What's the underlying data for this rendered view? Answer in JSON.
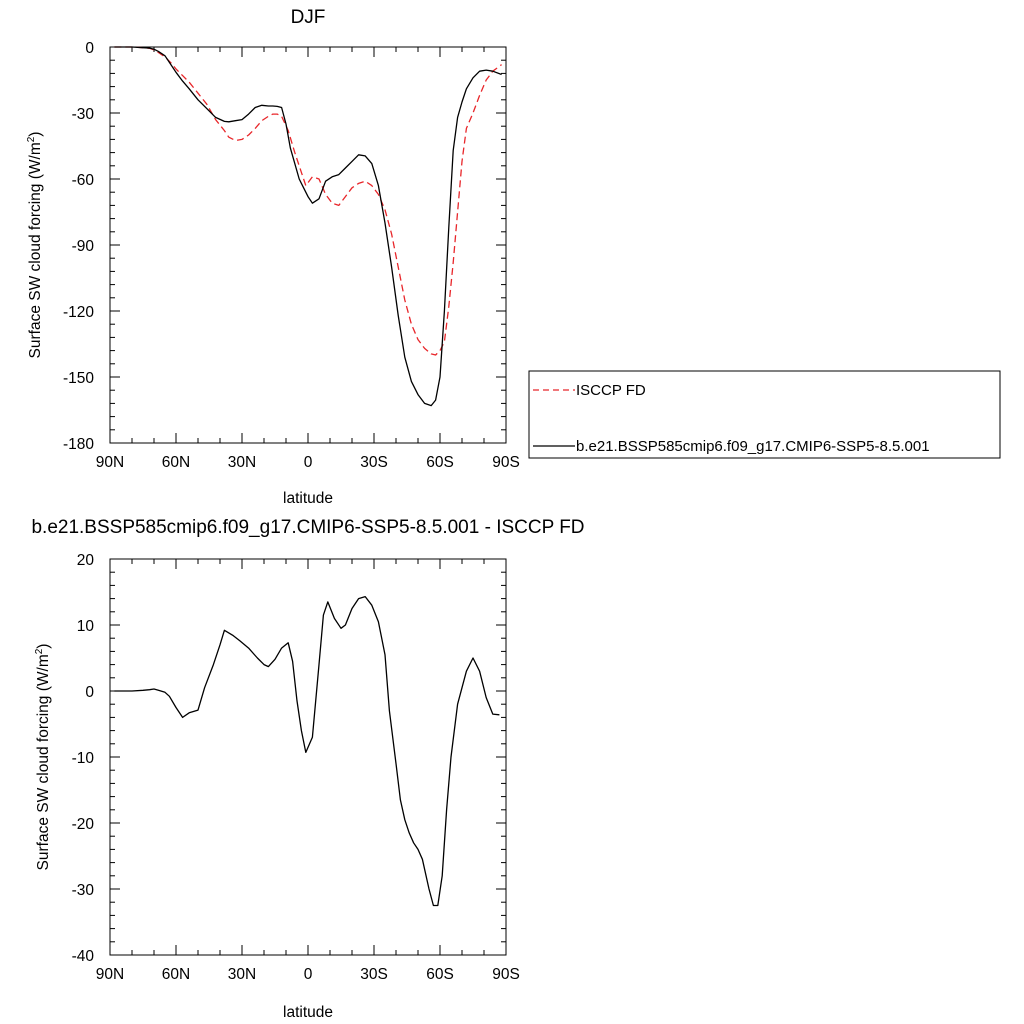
{
  "chart_data": [
    {
      "type": "line",
      "title": "DJF",
      "xlabel": "latitude",
      "ylabel": "Surface SW cloud forcing (W/m",
      "ylabel_sup": "2",
      "ylabel_close": ")",
      "xlim": [
        90,
        -90
      ],
      "ylim": [
        -180,
        0
      ],
      "x_ticks": [
        90,
        60,
        30,
        0,
        -30,
        -60,
        -90
      ],
      "x_tick_labels": [
        "90N",
        "60N",
        "30N",
        "0",
        "30S",
        "60S",
        "90S"
      ],
      "y_ticks": [
        0,
        -30,
        -60,
        -90,
        -120,
        -150,
        -180
      ],
      "y_tick_labels": [
        "0",
        "-30",
        "-60",
        "-90",
        "-120",
        "-150",
        "-180"
      ],
      "legend": {
        "placement": "right",
        "entries": [
          {
            "label": "ISCCP FD",
            "color": "#e8262a",
            "dash": "dashed"
          },
          {
            "label": "b.e21.BSSP585cmip6.f09_g17.CMIP6-SSP5-8.5.001",
            "color": "#000000",
            "dash": "solid"
          }
        ]
      },
      "series": [
        {
          "name": "ISCCP FD",
          "color": "#e8262a",
          "dash": "dashed",
          "x": [
            88,
            85,
            80,
            75,
            72,
            70,
            68,
            65,
            62,
            60,
            57,
            54,
            50,
            46,
            42,
            38,
            36,
            33,
            30,
            27,
            24,
            21,
            18,
            16,
            14,
            12,
            9,
            6,
            3,
            1,
            -2,
            -5,
            -8,
            -11,
            -14,
            -17,
            -20,
            -23,
            -26,
            -29,
            -32,
            -35,
            -38,
            -41,
            -44,
            -47,
            -50,
            -53,
            -56,
            -58,
            -60,
            -62,
            -64,
            -66,
            -68,
            -70,
            -72,
            -75,
            -78,
            -81,
            -84,
            -88
          ],
          "y": [
            0,
            0,
            0,
            -0.3,
            -0.6,
            -1.3,
            -2.5,
            -4.5,
            -7.5,
            -10,
            -13,
            -16,
            -21,
            -26,
            -33,
            -38,
            -41,
            -42.5,
            -42,
            -40,
            -37,
            -33.5,
            -31.5,
            -30.5,
            -30.5,
            -31.5,
            -38,
            -48,
            -57,
            -63,
            -59,
            -60,
            -67,
            -71,
            -72,
            -68,
            -64,
            -62,
            -61,
            -63,
            -67,
            -74,
            -85,
            -100,
            -115,
            -126,
            -133,
            -137,
            -139.5,
            -140,
            -138,
            -134,
            -118,
            -98,
            -75,
            -52,
            -37,
            -30,
            -22,
            -15,
            -11,
            -8
          ]
        },
        {
          "name": "b.e21.BSSP585cmip6.f09_g17.CMIP6-SSP5-8.5.001",
          "color": "#000000",
          "dash": "solid",
          "x": [
            88,
            85,
            80,
            75,
            72,
            70,
            68,
            65,
            63,
            60,
            57,
            54,
            50,
            46,
            42,
            38,
            36,
            33,
            30,
            27,
            24,
            21,
            18,
            16,
            14,
            12,
            10,
            8,
            6,
            4,
            2,
            0,
            -2,
            -5,
            -8,
            -11,
            -14,
            -17,
            -20,
            -23,
            -26,
            -29,
            -32,
            -35,
            -38,
            -41,
            -44,
            -47,
            -50,
            -53,
            -56,
            -58,
            -60,
            -62,
            -64,
            -66,
            -68,
            -70,
            -72,
            -75,
            -78,
            -81,
            -84,
            -88
          ],
          "y": [
            0,
            0,
            0,
            -0.3,
            -0.5,
            -1,
            -2,
            -4,
            -7,
            -11.5,
            -15.5,
            -19,
            -24,
            -28,
            -32,
            -33.8,
            -34,
            -33.5,
            -33,
            -30.5,
            -27.5,
            -26.5,
            -26.8,
            -26.8,
            -27,
            -27.5,
            -35,
            -46,
            -53,
            -60,
            -64,
            -68,
            -71,
            -69,
            -61,
            -59,
            -58,
            -55,
            -52,
            -49,
            -49.5,
            -53,
            -63,
            -80,
            -100,
            -122,
            -141,
            -152,
            -158,
            -162,
            -163,
            -160.5,
            -150,
            -120,
            -82,
            -47,
            -32,
            -25,
            -19,
            -14,
            -11,
            -10.5,
            -11,
            -12.5
          ]
        }
      ]
    },
    {
      "type": "line",
      "title": "b.e21.BSSP585cmip6.f09_g17.CMIP6-SSP5-8.5.001 - ISCCP FD",
      "xlabel": "latitude",
      "ylabel": "Surface SW cloud forcing (W/m",
      "ylabel_sup": "2",
      "ylabel_close": ")",
      "xlim": [
        90,
        -90
      ],
      "ylim": [
        -40,
        20
      ],
      "x_ticks": [
        90,
        60,
        30,
        0,
        -30,
        -60,
        -90
      ],
      "x_tick_labels": [
        "90N",
        "60N",
        "30N",
        "0",
        "30S",
        "60S",
        "90S"
      ],
      "y_ticks": [
        20,
        10,
        0,
        -10,
        -20,
        -30,
        -40
      ],
      "y_tick_labels": [
        "20",
        "10",
        "0",
        "-10",
        "-20",
        "-30",
        "-40"
      ],
      "series": [
        {
          "color": "#000000",
          "dash": "solid",
          "x": [
            88,
            85,
            80,
            75,
            72,
            70,
            68,
            65,
            63,
            60,
            57,
            54,
            50,
            47,
            43,
            40,
            38,
            36,
            34,
            31,
            27,
            23,
            20,
            18,
            15,
            12,
            9,
            7,
            5,
            3,
            1,
            -2,
            -5,
            -7,
            -9,
            -12,
            -15,
            -17,
            -20,
            -23,
            -26,
            -29,
            -32,
            -35,
            -37,
            -40,
            -42,
            -44,
            -46,
            -48,
            -50,
            -52,
            -55,
            -57,
            -59,
            -61,
            -63,
            -65,
            -68,
            -70,
            -72,
            -75,
            -78,
            -81,
            -84,
            -87
          ],
          "y": [
            0,
            0,
            0,
            0.1,
            0.2,
            0.3,
            0.1,
            -0.2,
            -0.8,
            -2.5,
            -4,
            -3.3,
            -2.9,
            0.5,
            4,
            7,
            9.2,
            8.8,
            8.4,
            7.6,
            6.5,
            5,
            4,
            3.7,
            4.8,
            6.5,
            7.3,
            4.5,
            -1.5,
            -6,
            -9.3,
            -7,
            4,
            11.5,
            13.5,
            11,
            9.5,
            10,
            12.5,
            14,
            14.3,
            13,
            10.5,
            5.5,
            -3,
            -11,
            -16.5,
            -19.5,
            -21.5,
            -23,
            -24,
            -25.5,
            -30,
            -32.5,
            -32.5,
            -28,
            -18,
            -10,
            -2,
            0.5,
            3,
            5,
            3,
            -1,
            -3.5,
            -3.6
          ]
        }
      ]
    }
  ]
}
